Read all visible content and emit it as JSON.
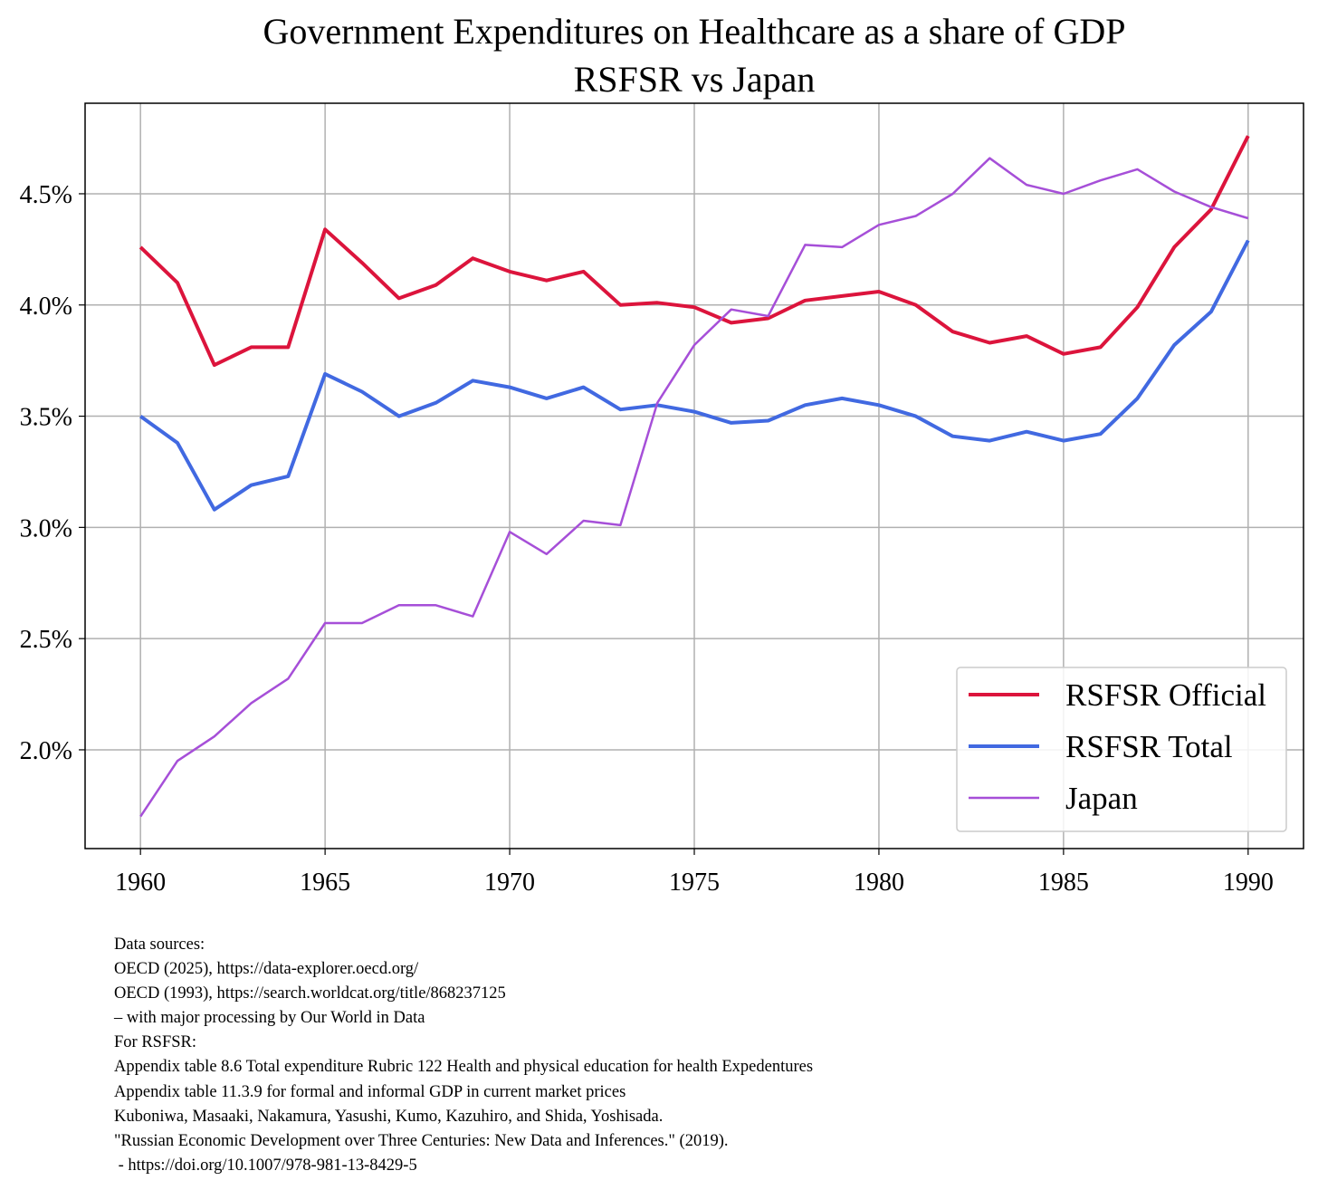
{
  "chart_data": {
    "type": "line",
    "title": "Government Expenditures on Healthcare as a share of GDP",
    "subtitle": "RSFSR vs Japan",
    "xlabel": "",
    "ylabel": "",
    "x": [
      1960,
      1961,
      1962,
      1963,
      1964,
      1965,
      1966,
      1967,
      1968,
      1969,
      1970,
      1971,
      1972,
      1973,
      1974,
      1975,
      1976,
      1977,
      1978,
      1979,
      1980,
      1981,
      1982,
      1983,
      1984,
      1985,
      1986,
      1987,
      1988,
      1989,
      1990
    ],
    "xlim": [
      1958.5,
      1991.5
    ],
    "ylim": [
      1.556,
      4.907
    ],
    "xticks": [
      1960,
      1965,
      1970,
      1975,
      1980,
      1985,
      1990
    ],
    "xtick_labels": [
      "1960",
      "1965",
      "1970",
      "1975",
      "1980",
      "1985",
      "1990"
    ],
    "yticks": [
      2.0,
      2.5,
      3.0,
      3.5,
      4.0,
      4.5
    ],
    "ytick_labels": [
      "2.0%",
      "2.5%",
      "3.0%",
      "3.5%",
      "4.0%",
      "4.5%"
    ],
    "grid": true,
    "legend_position": "bottom-right",
    "series": [
      {
        "name": "RSFSR Official",
        "color": "#dc143c",
        "width": 4,
        "values": [
          4.26,
          4.1,
          3.73,
          3.81,
          3.81,
          4.34,
          4.19,
          4.03,
          4.09,
          4.21,
          4.15,
          4.11,
          4.15,
          4.0,
          4.01,
          3.99,
          3.92,
          3.94,
          4.02,
          4.04,
          4.06,
          4.0,
          3.88,
          3.83,
          3.86,
          3.78,
          3.81,
          3.99,
          4.26,
          4.43,
          4.76
        ]
      },
      {
        "name": "RSFSR Total",
        "color": "#4169e1",
        "width": 4,
        "values": [
          3.5,
          3.38,
          3.08,
          3.19,
          3.23,
          3.69,
          3.61,
          3.5,
          3.56,
          3.66,
          3.63,
          3.58,
          3.63,
          3.53,
          3.55,
          3.52,
          3.47,
          3.48,
          3.55,
          3.58,
          3.55,
          3.5,
          3.41,
          3.39,
          3.43,
          3.39,
          3.42,
          3.58,
          3.82,
          3.97,
          4.29
        ]
      },
      {
        "name": "Japan",
        "color": "#a64fd8",
        "width": 2.5,
        "values": [
          1.7,
          1.95,
          2.06,
          2.21,
          2.32,
          2.57,
          2.57,
          2.65,
          2.65,
          2.6,
          2.98,
          2.88,
          3.03,
          3.01,
          3.56,
          3.82,
          3.98,
          3.95,
          4.27,
          4.26,
          4.36,
          4.4,
          4.5,
          4.66,
          4.54,
          4.5,
          4.56,
          4.61,
          4.51,
          4.44,
          4.39
        ]
      }
    ]
  },
  "sources": {
    "lines": [
      "Data sources:",
      "OECD (2025), https://data-explorer.oecd.org/",
      "OECD (1993), https://search.worldcat.org/title/868237125",
      "– with major processing by Our World in Data",
      "For RSFSR:",
      "Appendix table 8.6 Total expenditure Rubric 122 Health and physical education for health Expedentures",
      "Appendix table 11.3.9 for formal and informal GDP in current market prices",
      "Kuboniwa, Masaaki, Nakamura, Yasushi, Kumo, Kazuhiro, and Shida, Yoshisada.",
      "\"Russian Economic Development over Three Centuries: New Data and Inferences.\" (2019).",
      " - https://doi.org/10.1007/978-981-13-8429-5"
    ]
  }
}
